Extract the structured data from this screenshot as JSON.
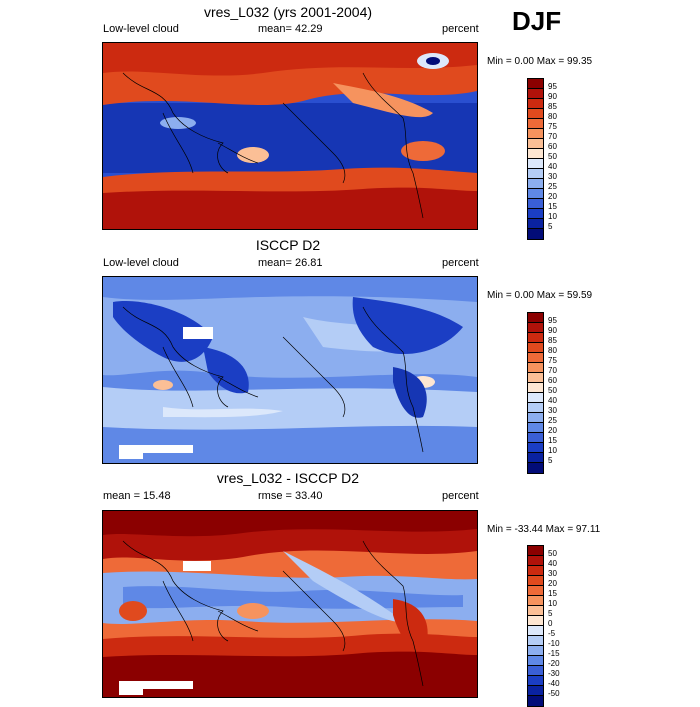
{
  "season": "DJF",
  "scale_colors": [
    "#8b0000",
    "#b0120a",
    "#cc2a10",
    "#e04a1e",
    "#ee6a38",
    "#f6935e",
    "#fbbf96",
    "#fde6d2",
    "#dce8fb",
    "#b4cdf6",
    "#8caeef",
    "#5f88e6",
    "#3a5fd6",
    "#1b3ec4",
    "#0a22a0",
    "#020c78"
  ],
  "panels": [
    {
      "title": "vres_L032 (yrs 2001-2004)",
      "left_label": "Low-level cloud",
      "center_label": "mean=  42.29",
      "right_label": "percent",
      "stats": "Min =   0.00 Max =  99.35",
      "colorbar_labels": [
        "95",
        "90",
        "85",
        "80",
        "75",
        "70",
        "60",
        "50",
        "40",
        "30",
        "25",
        "20",
        "15",
        "10",
        "5"
      ]
    },
    {
      "title": "ISCCP D2",
      "left_label": "Low-level cloud",
      "center_label": "mean=  26.81",
      "right_label": "percent",
      "stats": "Min =   0.00 Max =  59.59",
      "colorbar_labels": [
        "95",
        "90",
        "85",
        "80",
        "75",
        "70",
        "60",
        "50",
        "40",
        "30",
        "25",
        "20",
        "15",
        "10",
        "5"
      ]
    },
    {
      "title": "vres_L032 - ISCCP D2",
      "left_label": "mean =  15.48",
      "center_label": "rmse =  33.40",
      "right_label": "percent",
      "stats": "Min = -33.44 Max =  97.11",
      "colorbar_labels": [
        "50",
        "40",
        "30",
        "20",
        "15",
        "10",
        "5",
        "0",
        "-5",
        "-10",
        "-15",
        "-20",
        "-30",
        "-40",
        "-50"
      ]
    }
  ]
}
